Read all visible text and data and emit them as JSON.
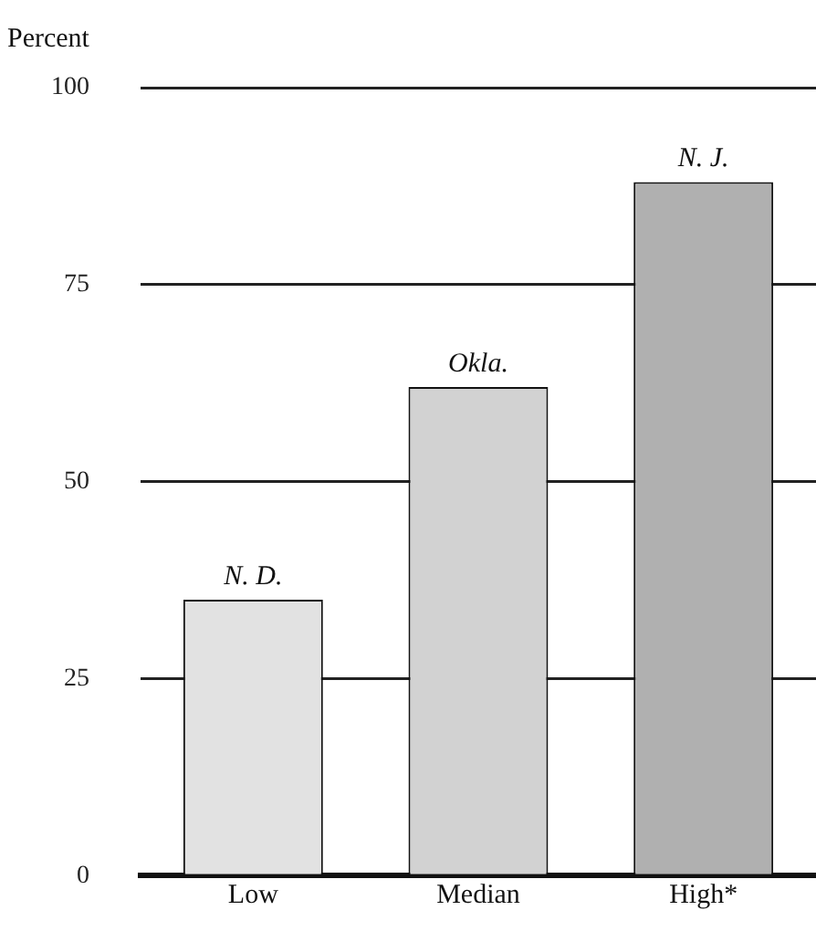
{
  "chart_data": {
    "type": "bar",
    "ylabel": "Percent",
    "categories": [
      "Low",
      "Median",
      "High*"
    ],
    "values": [
      35,
      62,
      88
    ],
    "colors": [
      "#e2e2e2",
      "#d2d2d2",
      "#b0b0b0"
    ],
    "ylim": [
      0,
      100
    ],
    "yticks": [
      0,
      25,
      50,
      75,
      100
    ],
    "grid": "y",
    "annotations": [
      {
        "text": "N. D.",
        "x": "Low",
        "y": 35
      },
      {
        "text": "Okla.",
        "x": "Median",
        "y": 62
      },
      {
        "text": "N. J.",
        "x": "High*",
        "y": 88
      }
    ]
  }
}
